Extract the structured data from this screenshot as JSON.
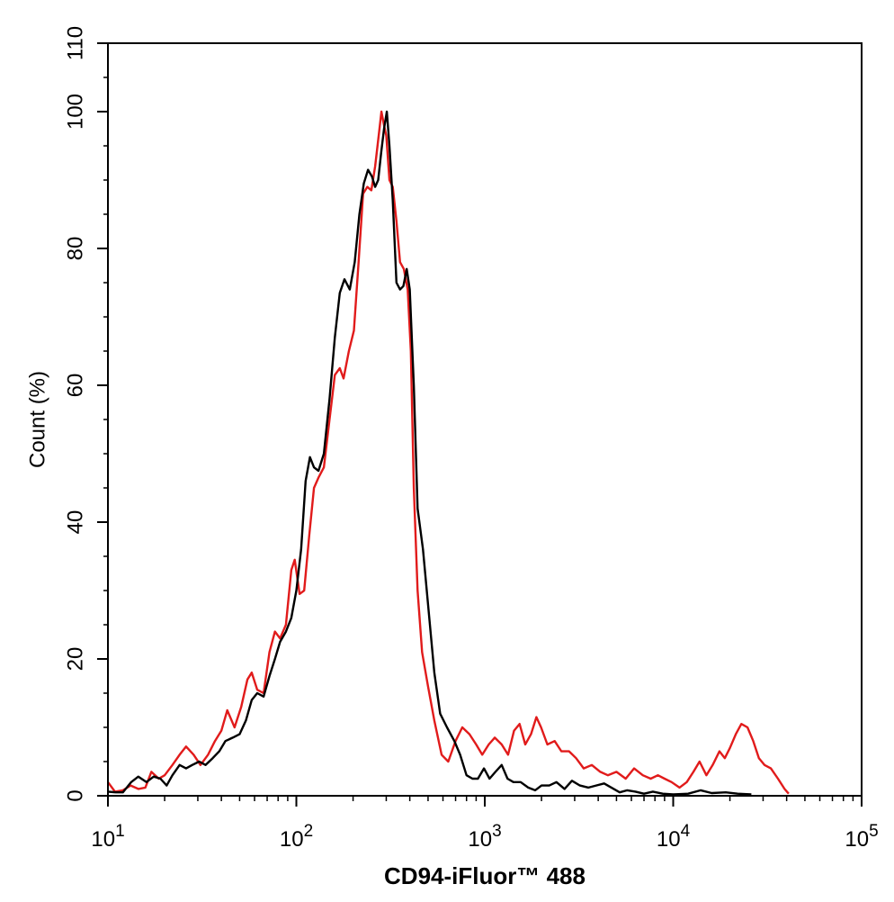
{
  "chart_data": {
    "type": "line",
    "xlabel": "CD94-iFluor™ 488",
    "ylabel": "Count  (%)",
    "x_scale": "log",
    "xlim": [
      10,
      100000
    ],
    "ylim": [
      0,
      110
    ],
    "x_ticks": [
      {
        "value": 10,
        "base": "10",
        "exp": "1"
      },
      {
        "value": 100,
        "base": "10",
        "exp": "2"
      },
      {
        "value": 1000,
        "base": "10",
        "exp": "3"
      },
      {
        "value": 10000,
        "base": "10",
        "exp": "4"
      },
      {
        "value": 100000,
        "base": "10",
        "exp": "5"
      }
    ],
    "y_ticks": [
      0,
      20,
      40,
      60,
      80,
      100,
      110
    ],
    "grid": false,
    "series": [
      {
        "color": "#e11b1b",
        "points": [
          [
            10,
            2
          ],
          [
            10.9,
            0.6
          ],
          [
            12,
            0.8
          ],
          [
            13.2,
            1.5
          ],
          [
            14.5,
            1.0
          ],
          [
            15.8,
            1.2
          ],
          [
            17,
            3.5
          ],
          [
            18.6,
            2.5
          ],
          [
            20,
            3.0
          ],
          [
            22,
            4.5
          ],
          [
            24,
            6.0
          ],
          [
            26,
            7.2
          ],
          [
            28.5,
            6.0
          ],
          [
            31,
            4.5
          ],
          [
            34,
            6.0
          ],
          [
            37,
            8.0
          ],
          [
            40,
            9.5
          ],
          [
            43,
            12.5
          ],
          [
            47,
            10.0
          ],
          [
            51,
            13.0
          ],
          [
            55,
            17.0
          ],
          [
            58,
            18.0
          ],
          [
            62,
            15.5
          ],
          [
            67,
            15.0
          ],
          [
            72,
            21.0
          ],
          [
            77,
            24.0
          ],
          [
            82,
            23.0
          ],
          [
            88,
            25.0
          ],
          [
            94,
            33.0
          ],
          [
            98,
            34.5
          ],
          [
            104,
            29.5
          ],
          [
            110,
            30.0
          ],
          [
            117,
            38.0
          ],
          [
            124,
            45.0
          ],
          [
            131,
            46.5
          ],
          [
            140,
            48.0
          ],
          [
            150,
            55.0
          ],
          [
            160,
            61.5
          ],
          [
            170,
            62.5
          ],
          [
            178,
            61.0
          ],
          [
            190,
            65.0
          ],
          [
            202,
            68.0
          ],
          [
            214,
            78.0
          ],
          [
            226,
            88.0
          ],
          [
            238,
            89.0
          ],
          [
            250,
            88.5
          ],
          [
            262,
            92.0
          ],
          [
            275,
            97.0
          ],
          [
            283,
            100.0
          ],
          [
            292,
            98.0
          ],
          [
            300,
            96.5
          ],
          [
            312,
            90.0
          ],
          [
            325,
            89.0
          ],
          [
            340,
            84.0
          ],
          [
            355,
            78.0
          ],
          [
            372,
            77.0
          ],
          [
            390,
            74.0
          ],
          [
            405,
            65.0
          ],
          [
            420,
            45.0
          ],
          [
            440,
            30.0
          ],
          [
            465,
            21.0
          ],
          [
            500,
            16.0
          ],
          [
            540,
            11.0
          ],
          [
            590,
            6.0
          ],
          [
            640,
            5.0
          ],
          [
            700,
            8.0
          ],
          [
            760,
            10.0
          ],
          [
            830,
            9.0
          ],
          [
            900,
            7.5
          ],
          [
            970,
            6.0
          ],
          [
            1050,
            7.5
          ],
          [
            1130,
            8.5
          ],
          [
            1230,
            7.5
          ],
          [
            1330,
            6.0
          ],
          [
            1430,
            9.5
          ],
          [
            1530,
            10.5
          ],
          [
            1640,
            7.5
          ],
          [
            1760,
            9.0
          ],
          [
            1880,
            11.5
          ],
          [
            1990,
            10.0
          ],
          [
            2150,
            7.5
          ],
          [
            2350,
            8.0
          ],
          [
            2550,
            6.5
          ],
          [
            2800,
            6.5
          ],
          [
            3050,
            5.5
          ],
          [
            3350,
            4.0
          ],
          [
            3700,
            4.5
          ],
          [
            4100,
            3.5
          ],
          [
            4500,
            3.0
          ],
          [
            5000,
            3.5
          ],
          [
            5600,
            2.5
          ],
          [
            6200,
            4.0
          ],
          [
            6900,
            3.0
          ],
          [
            7600,
            2.5
          ],
          [
            8300,
            3.0
          ],
          [
            9000,
            2.5
          ],
          [
            9800,
            2.0
          ],
          [
            10800,
            1.2
          ],
          [
            11800,
            2.0
          ],
          [
            12800,
            3.5
          ],
          [
            13800,
            5.0
          ],
          [
            15000,
            3.0
          ],
          [
            16200,
            4.5
          ],
          [
            17600,
            6.5
          ],
          [
            18800,
            5.5
          ],
          [
            20000,
            7.0
          ],
          [
            21500,
            9.0
          ],
          [
            23000,
            10.5
          ],
          [
            24800,
            10.0
          ],
          [
            26600,
            8.0
          ],
          [
            28500,
            5.5
          ],
          [
            30500,
            4.5
          ],
          [
            33000,
            4.0
          ],
          [
            36000,
            2.5
          ],
          [
            39000,
            1.0
          ],
          [
            41000,
            0.3
          ]
        ]
      },
      {
        "color": "#000000",
        "points": [
          [
            10,
            0.6
          ],
          [
            11,
            0.5
          ],
          [
            12,
            0.5
          ],
          [
            13.3,
            2.0
          ],
          [
            14.5,
            2.8
          ],
          [
            16,
            2.0
          ],
          [
            17.5,
            2.8
          ],
          [
            19,
            2.5
          ],
          [
            20.5,
            1.5
          ],
          [
            22,
            3.0
          ],
          [
            24,
            4.5
          ],
          [
            26,
            4.0
          ],
          [
            28,
            4.5
          ],
          [
            30.5,
            5.0
          ],
          [
            33,
            4.5
          ],
          [
            36,
            5.5
          ],
          [
            39,
            6.5
          ],
          [
            42,
            8.0
          ],
          [
            46,
            8.5
          ],
          [
            50,
            9.0
          ],
          [
            54,
            11.0
          ],
          [
            58,
            14.0
          ],
          [
            62,
            15.0
          ],
          [
            67,
            14.5
          ],
          [
            72,
            17.5
          ],
          [
            77,
            20.0
          ],
          [
            82,
            22.5
          ],
          [
            88,
            24.0
          ],
          [
            94,
            26.0
          ],
          [
            100,
            30.0
          ],
          [
            106,
            36.0
          ],
          [
            112,
            46.0
          ],
          [
            118,
            49.5
          ],
          [
            124,
            48.0
          ],
          [
            131,
            47.5
          ],
          [
            140,
            50.0
          ],
          [
            150,
            58.0
          ],
          [
            160,
            67.0
          ],
          [
            170,
            73.5
          ],
          [
            180,
            75.5
          ],
          [
            192,
            74.0
          ],
          [
            204,
            78.0
          ],
          [
            216,
            85.0
          ],
          [
            228,
            89.5
          ],
          [
            240,
            91.5
          ],
          [
            252,
            90.5
          ],
          [
            262,
            89.0
          ],
          [
            272,
            90.0
          ],
          [
            282,
            94.0
          ],
          [
            292,
            97.5
          ],
          [
            302,
            100.0
          ],
          [
            312,
            95.0
          ],
          [
            325,
            87.0
          ],
          [
            340,
            75.0
          ],
          [
            355,
            74.0
          ],
          [
            370,
            74.5
          ],
          [
            385,
            77.0
          ],
          [
            400,
            74.0
          ],
          [
            420,
            60.0
          ],
          [
            440,
            42.0
          ],
          [
            470,
            36.0
          ],
          [
            500,
            28.0
          ],
          [
            540,
            18.0
          ],
          [
            580,
            12.0
          ],
          [
            630,
            10.0
          ],
          [
            690,
            8.0
          ],
          [
            740,
            6.0
          ],
          [
            800,
            3.0
          ],
          [
            860,
            2.5
          ],
          [
            920,
            2.5
          ],
          [
            990,
            4.0
          ],
          [
            1060,
            2.5
          ],
          [
            1140,
            3.5
          ],
          [
            1230,
            4.5
          ],
          [
            1320,
            2.5
          ],
          [
            1420,
            2.0
          ],
          [
            1550,
            2.0
          ],
          [
            1700,
            1.2
          ],
          [
            1850,
            0.8
          ],
          [
            2000,
            1.5
          ],
          [
            2200,
            1.5
          ],
          [
            2400,
            2.0
          ],
          [
            2650,
            1.0
          ],
          [
            2900,
            2.2
          ],
          [
            3200,
            1.5
          ],
          [
            3550,
            1.2
          ],
          [
            3900,
            1.5
          ],
          [
            4300,
            1.8
          ],
          [
            4700,
            1.2
          ],
          [
            5200,
            0.5
          ],
          [
            5700,
            0.8
          ],
          [
            6300,
            0.6
          ],
          [
            7000,
            0.3
          ],
          [
            7800,
            0.6
          ],
          [
            8800,
            0.3
          ],
          [
            10000,
            0.2
          ],
          [
            12000,
            0.3
          ],
          [
            14000,
            0.8
          ],
          [
            16000,
            0.4
          ],
          [
            19000,
            0.5
          ],
          [
            22000,
            0.3
          ],
          [
            26000,
            0.2
          ]
        ]
      }
    ]
  }
}
